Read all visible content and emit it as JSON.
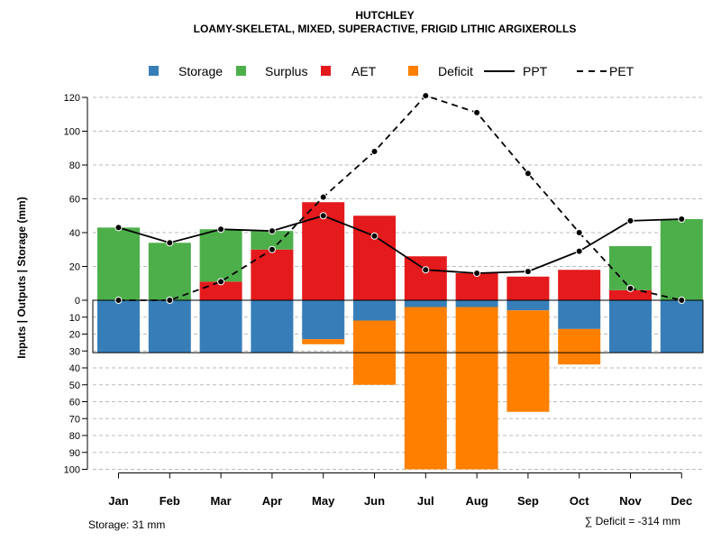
{
  "chart_data": {
    "type": "bar",
    "title": "HUTCHLEY",
    "subtitle": "LOAMY-SKELETAL, MIXED, SUPERACTIVE, FRIGID LITHIC ARGIXEROLLS",
    "ylabel": "Inputs | Outputs | Storage    (mm)",
    "xlabel": "",
    "categories": [
      "Jan",
      "Feb",
      "Mar",
      "Apr",
      "May",
      "Jun",
      "Jul",
      "Aug",
      "Sep",
      "Oct",
      "Nov",
      "Dec"
    ],
    "ylim_positive": [
      0,
      120
    ],
    "ylim_negative": [
      0,
      100
    ],
    "yticks_positive": [
      "0",
      "20",
      "40",
      "60",
      "80",
      "100",
      "120"
    ],
    "yticks_negative": [
      "10",
      "20",
      "30",
      "40",
      "50",
      "60",
      "70",
      "80",
      "90",
      "100"
    ],
    "grid": true,
    "legend_position": "top",
    "legend": [
      {
        "name": "Storage",
        "kind": "box",
        "color": "#377EB8"
      },
      {
        "name": "Surplus",
        "kind": "box",
        "color": "#4DAF4A"
      },
      {
        "name": "AET",
        "kind": "box",
        "color": "#E41A1C"
      },
      {
        "name": "Deficit",
        "kind": "box",
        "color": "#FF7F00"
      },
      {
        "name": "PPT",
        "kind": "solid"
      },
      {
        "name": "PET",
        "kind": "dashed"
      }
    ],
    "series": [
      {
        "name": "AET",
        "values": [
          0,
          0,
          11,
          30,
          58,
          50,
          26,
          16,
          14,
          18,
          6,
          0
        ]
      },
      {
        "name": "Surplus",
        "values": [
          43,
          34,
          31,
          11,
          0,
          0,
          0,
          0,
          0,
          0,
          26,
          48
        ]
      },
      {
        "name": "Storage",
        "values": [
          31,
          31,
          31,
          31,
          23,
          12,
          4,
          4,
          6,
          17,
          31,
          31
        ]
      },
      {
        "name": "Deficit",
        "values": [
          0,
          0,
          0,
          0,
          3,
          38,
          96,
          96,
          60,
          21,
          0,
          0
        ]
      },
      {
        "name": "PPT",
        "values": [
          43,
          34,
          42,
          41,
          50,
          38,
          18,
          16,
          17,
          29,
          47,
          48
        ]
      },
      {
        "name": "PET",
        "values": [
          0,
          0,
          11,
          30,
          61,
          88,
          121,
          111,
          75,
          40,
          7,
          0
        ]
      }
    ],
    "storage_capacity": 31,
    "annotations": {
      "storage": "Storage: 31 mm",
      "deficit": "∑ Deficit = -314 mm"
    }
  }
}
